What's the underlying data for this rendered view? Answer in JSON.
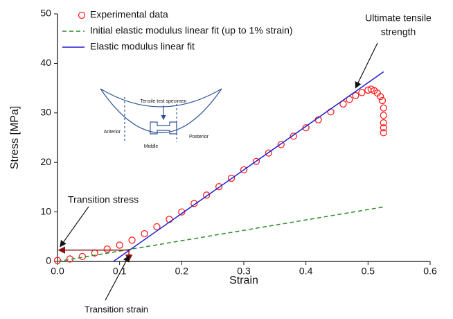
{
  "chart_data": {
    "type": "scatter",
    "x_label": "Strain",
    "y_label": "Stress [MPa]",
    "xlim": [
      0,
      0.6
    ],
    "ylim": [
      0,
      50
    ],
    "xticks": [
      {
        "value": 0,
        "label": "0.0"
      },
      0.1,
      0.2,
      0.3,
      0.4,
      0.5,
      0.6
    ],
    "yticks": [
      0,
      10,
      20,
      30,
      40,
      50
    ],
    "legend": "upper left",
    "series": [
      {
        "name": "Experimental data",
        "style": "markers",
        "color": "#ff2020",
        "x": [
          0,
          0.02,
          0.04,
          0.06,
          0.08,
          0.1,
          0.12,
          0.14,
          0.16,
          0.18,
          0.2,
          0.22,
          0.24,
          0.26,
          0.28,
          0.3,
          0.32,
          0.34,
          0.36,
          0.38,
          0.4,
          0.42,
          0.44,
          0.46,
          0.47,
          0.48,
          0.49,
          0.5,
          0.505,
          0.51,
          0.515,
          0.52,
          0.523,
          0.525,
          0.525,
          0.525,
          0.525,
          0.525
        ],
        "values": [
          0.2,
          0.5,
          1.0,
          1.7,
          2.5,
          3.3,
          4.3,
          5.6,
          7.0,
          8.5,
          10.0,
          11.7,
          13.4,
          15.1,
          16.8,
          18.5,
          20.2,
          21.9,
          23.6,
          25.3,
          27.0,
          28.6,
          30.2,
          31.8,
          32.7,
          33.5,
          34.1,
          34.6,
          34.8,
          34.5,
          34.0,
          33.3,
          32.5,
          31,
          29.5,
          28,
          27,
          26
        ]
      },
      {
        "name": "Initial elastic modulus linear fit (up to 1% strain)",
        "style": "dashed",
        "color": "#2a8a2a",
        "x": [
          0,
          0.525
        ],
        "values": [
          0,
          11
        ]
      },
      {
        "name": "Elastic modulus linear fit",
        "style": "solid",
        "color": "#1f1fd0",
        "x": [
          0.09,
          0.525
        ],
        "values": [
          0,
          38.3
        ]
      }
    ],
    "annotations": [
      {
        "text": [
          "Transition stress"
        ],
        "x": 0,
        "y": 2.3
      },
      {
        "text": [
          "Transition strain"
        ],
        "x": 0.115,
        "y": 0
      },
      {
        "text": [
          "Ultimate tensile",
          "strength"
        ],
        "x": 0.48,
        "y": 34.5
      }
    ],
    "inset": {
      "labels": [
        "Tensile test specimen",
        "Anterior",
        "Middle",
        "Posterior"
      ]
    }
  }
}
